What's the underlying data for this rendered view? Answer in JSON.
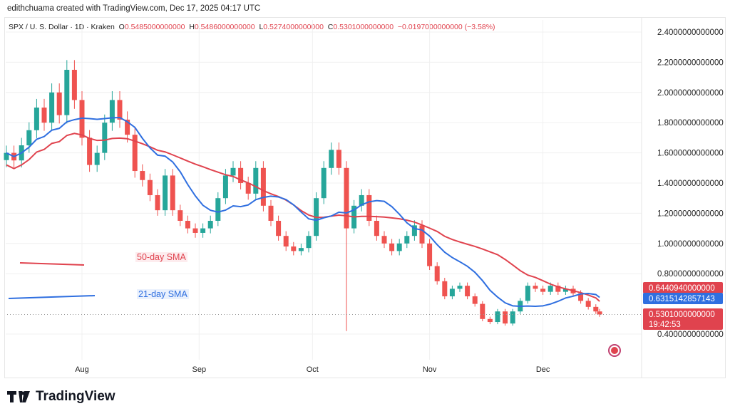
{
  "credit": "edithchuama created with TradingView.com, Dec 17, 2025 04:17 UTC",
  "legend": {
    "symbol": "SPX / U. S. Dollar · 1D · Kraken",
    "o_label": "O",
    "o": "0.5485000000000",
    "h_label": "H",
    "h": "0.5486000000000",
    "l_label": "L",
    "l": "0.5274000000000",
    "c_label": "C",
    "c": "0.5301000000000",
    "change": "−0.0197000000000 (−3.58%)"
  },
  "brand": "TradingView",
  "colors": {
    "up": "#26a69a",
    "down": "#ef5350",
    "sma50": "#e0434e",
    "sma21": "#2f6fe0"
  },
  "chart_data": {
    "type": "candlestick",
    "ylim": [
      0.3,
      2.5
    ],
    "y_ticks": [
      "2.4000000000000",
      "2.2000000000000",
      "2.0000000000000",
      "1.8000000000000",
      "1.6000000000000",
      "1.4000000000000",
      "1.2000000000000",
      "1.0000000000000",
      "0.8000000000000",
      "0.4000000000000"
    ],
    "x_ticks": [
      "Aug",
      "Sep",
      "Oct",
      "Nov",
      "Dec"
    ],
    "series_labels": {
      "sma50": "50-day SMA",
      "sma21": "21-day SMA"
    },
    "price_tags": {
      "sma50": "0.6440940000000",
      "sma21": "0.6315142857143",
      "last": "0.5301000000000",
      "countdown": "19:42:53"
    },
    "closes": [
      [
        "07-12",
        1.6
      ],
      [
        "07-14",
        1.55
      ],
      [
        "07-16",
        1.65
      ],
      [
        "07-18",
        1.75
      ],
      [
        "07-20",
        1.9
      ],
      [
        "07-22",
        1.8
      ],
      [
        "07-24",
        2.0
      ],
      [
        "07-26",
        1.85
      ],
      [
        "07-28",
        2.15
      ],
      [
        "07-30",
        1.95
      ],
      [
        "08-01",
        1.7
      ],
      [
        "08-03",
        1.52
      ],
      [
        "08-05",
        1.6
      ],
      [
        "08-07",
        1.8
      ],
      [
        "08-09",
        1.95
      ],
      [
        "08-11",
        1.82
      ],
      [
        "08-13",
        1.72
      ],
      [
        "08-15",
        1.48
      ],
      [
        "08-17",
        1.42
      ],
      [
        "08-19",
        1.32
      ],
      [
        "08-21",
        1.22
      ],
      [
        "08-23",
        1.45
      ],
      [
        "08-25",
        1.22
      ],
      [
        "08-27",
        1.15
      ],
      [
        "08-29",
        1.1
      ],
      [
        "08-31",
        1.07
      ],
      [
        "09-02",
        1.1
      ],
      [
        "09-04",
        1.15
      ],
      [
        "09-06",
        1.3
      ],
      [
        "09-08",
        1.45
      ],
      [
        "09-10",
        1.5
      ],
      [
        "09-12",
        1.4
      ],
      [
        "09-14",
        1.33
      ],
      [
        "09-16",
        1.5
      ],
      [
        "09-18",
        1.25
      ],
      [
        "09-20",
        1.15
      ],
      [
        "09-22",
        1.05
      ],
      [
        "09-24",
        0.98
      ],
      [
        "09-26",
        0.95
      ],
      [
        "09-28",
        0.97
      ],
      [
        "09-30",
        1.05
      ],
      [
        "10-02",
        1.3
      ],
      [
        "10-04",
        1.5
      ],
      [
        "10-06",
        1.62
      ],
      [
        "10-08",
        1.5
      ],
      [
        "10-10",
        1.1
      ],
      [
        "10-12",
        1.25
      ],
      [
        "10-14",
        1.32
      ],
      [
        "10-16",
        1.15
      ],
      [
        "10-18",
        1.05
      ],
      [
        "10-20",
        1.0
      ],
      [
        "10-22",
        0.95
      ],
      [
        "10-24",
        1.0
      ],
      [
        "10-26",
        1.05
      ],
      [
        "10-28",
        1.12
      ],
      [
        "10-30",
        1.0
      ],
      [
        "11-01",
        0.85
      ],
      [
        "11-03",
        0.75
      ],
      [
        "11-05",
        0.65
      ],
      [
        "11-07",
        0.7
      ],
      [
        "11-09",
        0.72
      ],
      [
        "11-11",
        0.65
      ],
      [
        "11-13",
        0.6
      ],
      [
        "11-15",
        0.5
      ],
      [
        "11-17",
        0.48
      ],
      [
        "11-19",
        0.55
      ],
      [
        "11-21",
        0.47
      ],
      [
        "11-23",
        0.55
      ],
      [
        "11-25",
        0.62
      ],
      [
        "11-27",
        0.72
      ],
      [
        "11-29",
        0.7
      ],
      [
        "12-01",
        0.68
      ],
      [
        "12-03",
        0.72
      ],
      [
        "12-05",
        0.68
      ],
      [
        "12-07",
        0.7
      ],
      [
        "12-09",
        0.67
      ],
      [
        "12-11",
        0.62
      ],
      [
        "12-13",
        0.58
      ],
      [
        "12-15",
        0.55
      ],
      [
        "12-16",
        0.53
      ]
    ]
  }
}
